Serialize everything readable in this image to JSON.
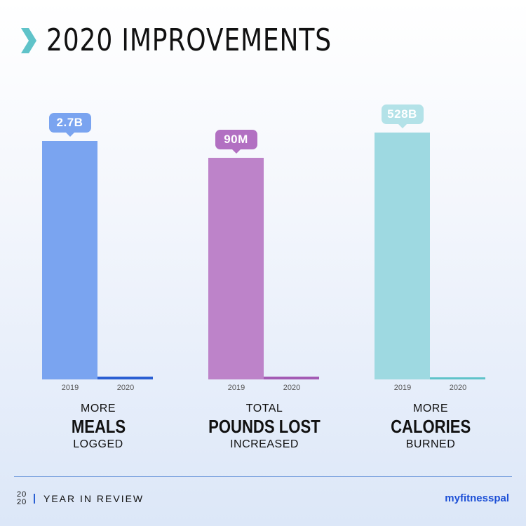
{
  "header": {
    "title": "2020 IMPROVEMENTS",
    "icon": "chevron-right-icon",
    "icon_color": "#5fc3c9"
  },
  "chart_data": [
    {
      "type": "bar",
      "categories": [
        "2019",
        "2020"
      ],
      "values": [
        2.7,
        0.03
      ],
      "value_label": "2.7B",
      "caption": {
        "top": "MORE",
        "main": "MEALS",
        "bottom": "LOGGED"
      },
      "colors": {
        "bar2019": "#7aa4f0",
        "bar2020": "#2a5fd3",
        "bubble": "#7aa4f0"
      }
    },
    {
      "type": "bar",
      "categories": [
        "2019",
        "2020"
      ],
      "values": [
        90,
        1
      ],
      "value_label": "90M",
      "caption": {
        "top": "TOTAL",
        "main": "POUNDS LOST",
        "bottom": "INCREASED"
      },
      "colors": {
        "bar2019": "#bd83c9",
        "bar2020": "#a35bb4",
        "bubble": "#b270c2"
      }
    },
    {
      "type": "bar",
      "categories": [
        "2019",
        "2020"
      ],
      "values": [
        528,
        5
      ],
      "value_label": "528B",
      "caption": {
        "top": "MORE",
        "main": "CALORIES",
        "bottom": "BURNED"
      },
      "colors": {
        "bar2019": "#9ed9e1",
        "bar2020": "#5fc3c9",
        "bubble": "#b3e2e8"
      }
    }
  ],
  "footer": {
    "year_top": "20",
    "year_bottom": "20",
    "label": "YEAR IN REVIEW",
    "brand": "myfitnesspal",
    "divider_color": "#7fa6e0"
  }
}
